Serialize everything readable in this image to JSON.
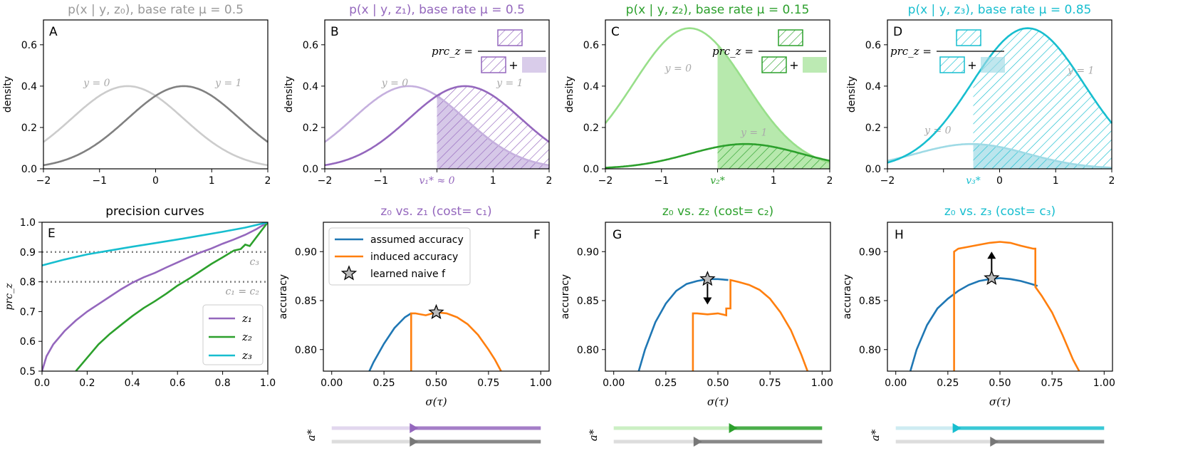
{
  "colors": {
    "gray_light": "#cccccc",
    "gray_dark": "#808080",
    "purple": "#9467bd",
    "purple_light": "#c5b0de",
    "green": "#2ca02c",
    "green_light": "#98df8a",
    "cyan": "#17becf",
    "cyan_light": "#9edae5",
    "blue": "#1f77b4",
    "orange": "#ff7f0e",
    "dotted": "#808080"
  },
  "chart_data": [
    {
      "panel": "A",
      "type": "line",
      "title": "p(x | y, z₀), base rate μ = 0.5",
      "ylabel": "density",
      "xlim": [
        -2,
        2
      ],
      "ylim": [
        0,
        0.72
      ],
      "xticks": [
        "−2",
        "−1",
        "0",
        "1",
        "2"
      ],
      "yticks": [
        "0.0",
        "0.2",
        "0.4",
        "0.6"
      ],
      "series": [
        {
          "name": "y = 0",
          "mean": -0.5,
          "sd": 1,
          "weight": 0.5
        },
        {
          "name": "y = 1",
          "mean": 0.5,
          "sd": 1,
          "weight": 0.5
        }
      ]
    },
    {
      "panel": "B",
      "type": "line",
      "title": "p(x | y, z₁), base rate μ = 0.5",
      "ylabel": "density",
      "xlim": [
        -2,
        2
      ],
      "ylim": [
        0,
        0.72
      ],
      "xticks": [
        "−2",
        "−1",
        "",
        "1",
        "2"
      ],
      "yticks": [
        "0.0",
        "0.2",
        "0.4",
        "0.6"
      ],
      "threshold": 0,
      "threshold_label": "v₁* ≈ 0",
      "formula_label": "prc_z =",
      "formula_plus": "+",
      "series": [
        {
          "name": "y = 0",
          "mean": -0.5,
          "sd": 1,
          "weight": 0.5
        },
        {
          "name": "y = 1",
          "mean": 0.5,
          "sd": 1,
          "weight": 0.5
        }
      ]
    },
    {
      "panel": "C",
      "type": "line",
      "title": "p(x | y, z₂), base rate μ = 0.15",
      "ylabel": "density",
      "xlim": [
        -2,
        2
      ],
      "ylim": [
        0,
        0.72
      ],
      "xticks": [
        "−2",
        "−1",
        "",
        "1",
        "2"
      ],
      "yticks": [
        "0.0",
        "0.2",
        "0.4",
        "0.6"
      ],
      "threshold": 0,
      "threshold_label": "v₂*",
      "formula_label": "prc_z =",
      "formula_plus": "+",
      "series": [
        {
          "name": "y = 0",
          "mean": -0.5,
          "sd": 1,
          "weight": 0.85
        },
        {
          "name": "y = 1",
          "mean": 0.5,
          "sd": 1,
          "weight": 0.15
        }
      ]
    },
    {
      "panel": "D",
      "type": "line",
      "title": "p(x | y, z₃), base rate μ = 0.85",
      "ylabel": "density",
      "xlim": [
        -2,
        2
      ],
      "ylim": [
        0,
        0.72
      ],
      "xticks": [
        "−2",
        "",
        "0",
        "1",
        "2"
      ],
      "yticks": [
        "0.0",
        "0.2",
        "0.4",
        "0.6"
      ],
      "threshold": -0.47,
      "threshold_label": "v₃*",
      "formula_label": "prc_z =",
      "formula_plus": "+",
      "series": [
        {
          "name": "y = 0",
          "mean": -0.5,
          "sd": 1,
          "weight": 0.15
        },
        {
          "name": "y = 1",
          "mean": 0.5,
          "sd": 1,
          "weight": 0.85
        }
      ]
    },
    {
      "panel": "E",
      "type": "line",
      "title": "precision curves",
      "ylabel": "prc_z",
      "xlim": [
        0,
        1
      ],
      "ylim": [
        0.5,
        1.0
      ],
      "xticks": [
        "0.0",
        "0.2",
        "0.4",
        "0.6",
        "0.8",
        "1.0"
      ],
      "yticks": [
        "0.5",
        "0.6",
        "0.7",
        "0.8",
        "0.9",
        "1.0"
      ],
      "hlines": [
        {
          "y": 0.9,
          "label": "c₃"
        },
        {
          "y": 0.8,
          "label": "c₁ = c₂"
        }
      ],
      "legend": [
        "z₁",
        "z₂",
        "z₃"
      ],
      "series": [
        {
          "name": "z₁",
          "x": [
            0.0,
            0.02,
            0.05,
            0.1,
            0.15,
            0.2,
            0.25,
            0.3,
            0.35,
            0.4,
            0.45,
            0.5,
            0.55,
            0.6,
            0.65,
            0.7,
            0.75,
            0.8,
            0.85,
            0.9,
            0.95,
            1.0
          ],
          "y": [
            0.5,
            0.55,
            0.59,
            0.635,
            0.67,
            0.7,
            0.725,
            0.75,
            0.775,
            0.797,
            0.815,
            0.83,
            0.848,
            0.865,
            0.882,
            0.898,
            0.912,
            0.928,
            0.942,
            0.958,
            0.977,
            1.0
          ]
        },
        {
          "name": "z₂",
          "x": [
            0.15,
            0.2,
            0.25,
            0.3,
            0.35,
            0.4,
            0.45,
            0.5,
            0.55,
            0.6,
            0.65,
            0.7,
            0.75,
            0.8,
            0.85,
            0.88,
            0.9,
            0.92,
            0.95,
            0.97,
            1.0
          ],
          "y": [
            0.5,
            0.545,
            0.59,
            0.625,
            0.655,
            0.685,
            0.712,
            0.735,
            0.76,
            0.787,
            0.81,
            0.835,
            0.86,
            0.882,
            0.905,
            0.91,
            0.925,
            0.92,
            0.95,
            0.97,
            1.0
          ]
        },
        {
          "name": "z₃",
          "x": [
            0.0,
            0.1,
            0.2,
            0.3,
            0.4,
            0.5,
            0.6,
            0.7,
            0.8,
            0.9,
            1.0
          ],
          "y": [
            0.855,
            0.875,
            0.892,
            0.905,
            0.918,
            0.93,
            0.942,
            0.955,
            0.968,
            0.982,
            1.0
          ]
        }
      ]
    },
    {
      "panel": "F",
      "type": "line",
      "title": "z₀ vs. z₁ (cost= c₁)",
      "xlabel": "σ(τ)",
      "ylabel": "accuracy",
      "xlim": [
        -0.04,
        1.04
      ],
      "ylim": [
        0.778,
        0.93
      ],
      "xticks": [
        "0.00",
        "0.25",
        "0.50",
        "0.75",
        "1.00"
      ],
      "yticks": [
        "0.80",
        "0.85",
        "0.90"
      ],
      "legend": [
        "assumed accuracy",
        "induced accuracy",
        "learned naive f"
      ],
      "assumed": {
        "x": [
          0.18,
          0.2,
          0.25,
          0.3,
          0.35,
          0.38
        ],
        "y": [
          0.778,
          0.787,
          0.806,
          0.822,
          0.833,
          0.837
        ]
      },
      "induced": {
        "x": [
          0.38,
          0.38,
          0.4,
          0.45,
          0.5,
          0.55,
          0.6,
          0.65,
          0.7,
          0.75,
          0.78,
          0.81
        ],
        "y": [
          0.778,
          0.837,
          0.837,
          0.835,
          0.838,
          0.837,
          0.833,
          0.826,
          0.815,
          0.8,
          0.79,
          0.778
        ]
      },
      "star": {
        "x": 0.5,
        "y": 0.838
      },
      "action_label": "a*",
      "action_switch": 0.38
    },
    {
      "panel": "G",
      "type": "line",
      "title": "z₀ vs. z₂ (cost= c₂)",
      "xlabel": "σ(τ)",
      "ylabel": "accuracy",
      "xlim": [
        -0.04,
        1.04
      ],
      "ylim": [
        0.778,
        0.93
      ],
      "xticks": [
        "0.00",
        "0.25",
        "0.50",
        "0.75",
        "1.00"
      ],
      "yticks": [
        "0.80",
        "0.85",
        "0.90"
      ],
      "assumed": {
        "x": [
          0.12,
          0.15,
          0.2,
          0.25,
          0.3,
          0.35,
          0.4,
          0.45,
          0.5,
          0.55
        ],
        "y": [
          0.778,
          0.8,
          0.828,
          0.847,
          0.86,
          0.867,
          0.87,
          0.872,
          0.872,
          0.871
        ]
      },
      "induced": {
        "x": [
          0.38,
          0.38,
          0.4,
          0.45,
          0.5,
          0.54,
          0.54,
          0.56,
          0.56,
          0.6,
          0.65,
          0.7,
          0.75,
          0.8,
          0.85,
          0.9,
          0.93
        ],
        "y": [
          0.778,
          0.837,
          0.837,
          0.836,
          0.837,
          0.835,
          0.842,
          0.842,
          0.871,
          0.869,
          0.866,
          0.861,
          0.852,
          0.838,
          0.82,
          0.795,
          0.778
        ]
      },
      "star": {
        "x": 0.45,
        "y": 0.872
      },
      "arrow_to": 0.846,
      "action_label": "a*",
      "action_switch": 0.56,
      "action_switch_2": 0.39
    },
    {
      "panel": "H",
      "type": "line",
      "title": "z₀ vs. z₃ (cost= c₃)",
      "xlabel": "σ(τ)",
      "ylabel": "accuracy",
      "xlim": [
        -0.04,
        1.04
      ],
      "ylim": [
        0.778,
        0.93
      ],
      "xticks": [
        "0.00",
        "0.25",
        "0.50",
        "0.75",
        "1.00"
      ],
      "yticks": [
        "0.80",
        "0.85",
        "0.90"
      ],
      "assumed": {
        "x": [
          0.07,
          0.1,
          0.15,
          0.2,
          0.25,
          0.3,
          0.35,
          0.4,
          0.45,
          0.5,
          0.55,
          0.6,
          0.65,
          0.68
        ],
        "y": [
          0.778,
          0.8,
          0.825,
          0.842,
          0.852,
          0.86,
          0.866,
          0.87,
          0.872,
          0.873,
          0.872,
          0.87,
          0.867,
          0.865
        ]
      },
      "induced": {
        "x": [
          0.28,
          0.28,
          0.3,
          0.35,
          0.4,
          0.45,
          0.5,
          0.55,
          0.6,
          0.66,
          0.67,
          0.67,
          0.7,
          0.75,
          0.8,
          0.85,
          0.88
        ],
        "y": [
          0.778,
          0.9,
          0.903,
          0.905,
          0.907,
          0.909,
          0.91,
          0.909,
          0.906,
          0.903,
          0.903,
          0.864,
          0.855,
          0.838,
          0.815,
          0.79,
          0.778
        ]
      },
      "star": {
        "x": 0.46,
        "y": 0.873
      },
      "arrow_to": 0.9,
      "action_label": "a*",
      "action_switch": 0.28,
      "action_switch_2": 0.46
    }
  ]
}
